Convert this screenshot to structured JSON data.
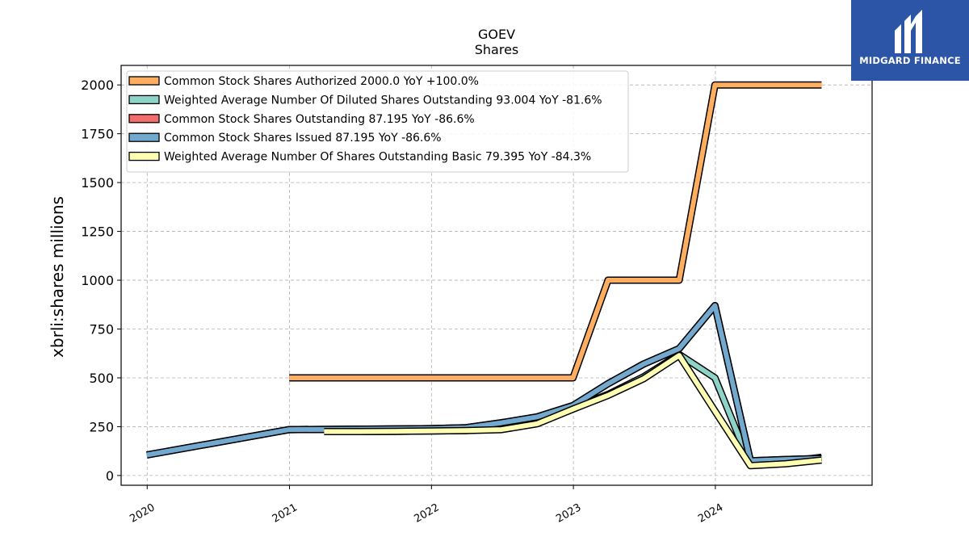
{
  "logo": {
    "text": "MIDGARD FINANCE"
  },
  "chart_data": {
    "type": "line",
    "title": "GOEV",
    "subtitle": "Shares",
    "ylabel": "xbrli:shares millions",
    "ylim": [
      -50,
      2100
    ],
    "xlim": [
      "2019-10-26",
      "2025-02-07"
    ],
    "grid": true,
    "legend_position": "top-left",
    "y_ticks": [
      0,
      250,
      500,
      750,
      1000,
      1250,
      1500,
      1750,
      2000
    ],
    "x_ticks": [
      "2020",
      "2021",
      "2022",
      "2023",
      "2024"
    ],
    "series": [
      {
        "name": "Common Stock Shares Authorized  2000.0 YoY +100.0%",
        "color": "#fdae61",
        "points": [
          [
            "2020-12-31",
            500
          ],
          [
            "2022-12-31",
            500
          ],
          [
            "2023-03-31",
            1000
          ],
          [
            "2023-09-30",
            1000
          ],
          [
            "2023-12-31",
            2000
          ],
          [
            "2024-09-30",
            2000
          ]
        ]
      },
      {
        "name": "Weighted Average Number Of Diluted Shares Outstanding  93.004 YoY -81.6%",
        "color": "#8dd3c7",
        "points": [
          [
            "2021-03-31",
            225
          ],
          [
            "2021-06-30",
            225
          ],
          [
            "2021-09-30",
            226
          ],
          [
            "2021-12-31",
            228
          ],
          [
            "2022-03-31",
            230
          ],
          [
            "2022-06-30",
            240
          ],
          [
            "2022-09-30",
            270
          ],
          [
            "2022-12-31",
            345
          ],
          [
            "2023-03-31",
            415
          ],
          [
            "2023-06-30",
            505
          ],
          [
            "2023-09-30",
            620
          ],
          [
            "2023-12-31",
            500
          ],
          [
            "2024-03-31",
            55
          ],
          [
            "2024-06-30",
            70
          ],
          [
            "2024-09-30",
            93
          ]
        ]
      },
      {
        "name": "Common Stock Shares Outstanding  87.195 YoY -86.6%",
        "color": "#f46d6d",
        "points": [
          [
            "2019-12-31",
            105
          ],
          [
            "2020-12-31",
            235
          ],
          [
            "2021-12-31",
            240
          ],
          [
            "2022-03-31",
            245
          ],
          [
            "2022-06-30",
            270
          ],
          [
            "2022-09-30",
            300
          ],
          [
            "2022-12-31",
            358
          ],
          [
            "2023-03-31",
            470
          ],
          [
            "2023-06-30",
            570
          ],
          [
            "2023-09-30",
            650
          ],
          [
            "2023-12-31",
            870
          ],
          [
            "2024-03-31",
            75
          ],
          [
            "2024-06-30",
            82
          ],
          [
            "2024-09-30",
            87
          ]
        ]
      },
      {
        "name": "Common Stock Shares Issued  87.195 YoY -86.6%",
        "color": "#74a9cf",
        "points": [
          [
            "2019-12-31",
            105
          ],
          [
            "2020-12-31",
            235
          ],
          [
            "2021-12-31",
            240
          ],
          [
            "2022-03-31",
            245
          ],
          [
            "2022-06-30",
            270
          ],
          [
            "2022-09-30",
            300
          ],
          [
            "2022-12-31",
            358
          ],
          [
            "2023-03-31",
            470
          ],
          [
            "2023-06-30",
            570
          ],
          [
            "2023-09-30",
            650
          ],
          [
            "2023-12-31",
            870
          ],
          [
            "2024-03-31",
            75
          ],
          [
            "2024-06-30",
            82
          ],
          [
            "2024-09-30",
            87
          ]
        ]
      },
      {
        "name": "Weighted Average Number Of Shares Outstanding Basic  79.395 YoY -84.3%",
        "color": "#ffffb3",
        "points": [
          [
            "2021-03-31",
            225
          ],
          [
            "2021-06-30",
            225
          ],
          [
            "2021-09-30",
            226
          ],
          [
            "2021-12-31",
            228
          ],
          [
            "2022-03-31",
            230
          ],
          [
            "2022-06-30",
            235
          ],
          [
            "2022-09-30",
            265
          ],
          [
            "2022-12-31",
            340
          ],
          [
            "2023-03-31",
            410
          ],
          [
            "2023-06-30",
            495
          ],
          [
            "2023-09-30",
            615
          ],
          [
            "2023-12-31",
            330
          ],
          [
            "2024-03-31",
            50
          ],
          [
            "2024-06-30",
            60
          ],
          [
            "2024-09-30",
            79
          ]
        ]
      }
    ]
  }
}
